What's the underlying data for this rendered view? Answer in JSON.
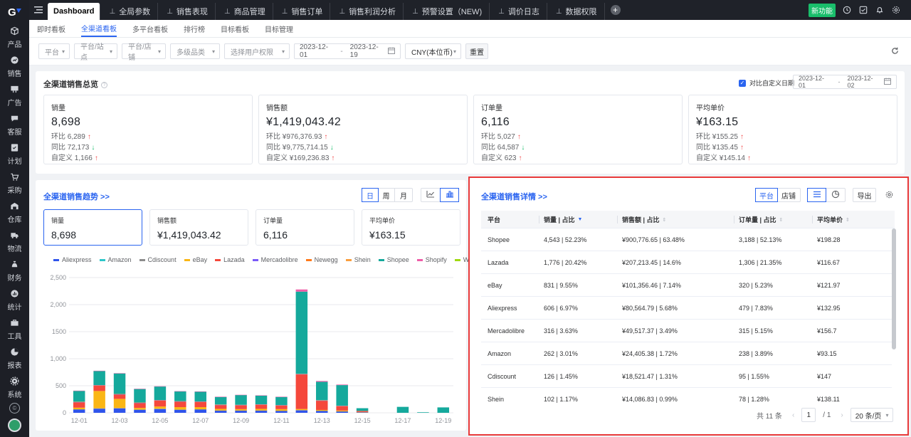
{
  "sidebar": {
    "items": [
      {
        "label": "产品",
        "icon": "box-icon"
      },
      {
        "label": "销售",
        "icon": "chart-circle-icon"
      },
      {
        "label": "广告",
        "icon": "billboard-icon"
      },
      {
        "label": "客服",
        "icon": "chat-icon"
      },
      {
        "label": "计划",
        "icon": "checklist-icon"
      },
      {
        "label": "采购",
        "icon": "cart-icon"
      },
      {
        "label": "仓库",
        "icon": "warehouse-icon"
      },
      {
        "label": "物流",
        "icon": "truck-icon"
      },
      {
        "label": "财务",
        "icon": "money-bag-icon"
      },
      {
        "label": "统计",
        "icon": "stats-icon"
      },
      {
        "label": "工具",
        "icon": "toolbox-icon"
      },
      {
        "label": "报表",
        "icon": "pie-report-icon"
      },
      {
        "label": "系统",
        "icon": "gear-icon"
      }
    ]
  },
  "topbar": {
    "tabs": [
      {
        "label": "Dashboard",
        "active": true
      },
      {
        "label": "全局参数"
      },
      {
        "label": "销售表现"
      },
      {
        "label": "商品管理"
      },
      {
        "label": "销售订单"
      },
      {
        "label": "销售利润分析"
      },
      {
        "label": "预警设置（NEW)"
      },
      {
        "label": "调价日志"
      },
      {
        "label": "数据权限"
      }
    ],
    "new_feature": "新功能"
  },
  "subnav": {
    "tabs": [
      "即时看板",
      "全渠道看板",
      "多平台看板",
      "排行榜",
      "目标看板",
      "目标管理"
    ],
    "active": 1
  },
  "filters": {
    "platform": "平台",
    "platform_site": "平台/站点",
    "platform_shop": "平台/店铺",
    "category": "多级品类",
    "user_perm": "选择用户权限",
    "date_start": "2023-12-01",
    "date_end": "2023-12-19",
    "date_sep": "-",
    "currency": "CNY(本位币)",
    "reset": "重置"
  },
  "overview": {
    "title": "全渠道销售总览",
    "compare_label": "对比自定义日期",
    "compare_checked": true,
    "compare_start": "2023-12-01",
    "compare_end": "2023-12-02",
    "compare_sep": "-",
    "cards": [
      {
        "label": "销量",
        "value": "8,698",
        "mom_label": "环比",
        "mom": "6,289",
        "mom_dir": "up",
        "yoy_label": "同比",
        "yoy": "72,173",
        "yoy_dir": "down",
        "custom_label": "自定义",
        "custom": "1,166",
        "custom_dir": "up"
      },
      {
        "label": "销售额",
        "value": "¥1,419,043.42",
        "mom_label": "环比",
        "mom": "¥976,376.93",
        "mom_dir": "up",
        "yoy_label": "同比",
        "yoy": "¥9,775,714.15",
        "yoy_dir": "down",
        "custom_label": "自定义",
        "custom": "¥169,236.83",
        "custom_dir": "up"
      },
      {
        "label": "订单量",
        "value": "6,116",
        "mom_label": "环比",
        "mom": "5,027",
        "mom_dir": "up",
        "yoy_label": "同比",
        "yoy": "64,587",
        "yoy_dir": "down",
        "custom_label": "自定义",
        "custom": "623",
        "custom_dir": "up"
      },
      {
        "label": "平均单价",
        "value": "¥163.15",
        "mom_label": "环比",
        "mom": "¥155.25",
        "mom_dir": "up",
        "yoy_label": "同比",
        "yoy": "¥135.45",
        "yoy_dir": "up",
        "custom_label": "自定义",
        "custom": "¥145.14",
        "custom_dir": "up"
      }
    ]
  },
  "trend": {
    "title": "全渠道销售趋势 >>",
    "periods": [
      "日",
      "周",
      "月"
    ],
    "active_period": 0,
    "chart_modes": [
      "line-chart-icon",
      "bar-chart-icon"
    ],
    "active_mode": 1,
    "kpis": [
      {
        "label": "销量",
        "value": "8,698"
      },
      {
        "label": "销售额",
        "value": "¥1,419,043.42"
      },
      {
        "label": "订单量",
        "value": "6,116"
      },
      {
        "label": "平均单价",
        "value": "¥163.15"
      }
    ],
    "active_kpi": 0
  },
  "chart_data": {
    "type": "bar",
    "stacked": true,
    "title": "",
    "xlabel": "",
    "ylabel": "",
    "ylim": [
      0,
      2500
    ],
    "yticks": [
      0,
      500,
      1000,
      1500,
      2000,
      2500
    ],
    "ytick_labels": [
      "0",
      "500",
      "1,000",
      "1500",
      "2,000",
      "2,500"
    ],
    "x_tick_labels": [
      "12-01",
      "12-03",
      "12-05",
      "12-07",
      "12-09",
      "12-11",
      "12-13",
      "12-15",
      "12-17",
      "12-19"
    ],
    "legend_position": "top",
    "grid": true,
    "categories": [
      "12-01",
      "12-02",
      "12-03",
      "12-04",
      "12-05",
      "12-06",
      "12-07",
      "12-08",
      "12-09",
      "12-10",
      "12-11",
      "12-12",
      "12-13",
      "12-14",
      "12-15",
      "12-16",
      "12-17",
      "12-18",
      "12-19"
    ],
    "series": [
      {
        "name": "Aliexpress",
        "color": "#2f54eb",
        "values": [
          60,
          75,
          80,
          55,
          70,
          55,
          60,
          40,
          40,
          40,
          35,
          45,
          35,
          25,
          10,
          0,
          0,
          0,
          0
        ]
      },
      {
        "name": "Amazon",
        "color": "#2ec7c9",
        "values": [
          0,
          0,
          0,
          0,
          0,
          0,
          0,
          0,
          0,
          0,
          0,
          0,
          0,
          0,
          0,
          0,
          0,
          0,
          0
        ]
      },
      {
        "name": "Cdiscount",
        "color": "#8c8c8c",
        "values": [
          5,
          8,
          8,
          5,
          6,
          5,
          5,
          3,
          3,
          3,
          3,
          5,
          3,
          2,
          0,
          0,
          0,
          0,
          0
        ]
      },
      {
        "name": "eBay",
        "color": "#fab615",
        "values": [
          30,
          320,
          170,
          30,
          40,
          45,
          40,
          30,
          25,
          30,
          30,
          20,
          15,
          15,
          5,
          0,
          0,
          0,
          0
        ]
      },
      {
        "name": "Lazada",
        "color": "#f5483b",
        "values": [
          100,
          100,
          80,
          90,
          110,
          100,
          95,
          70,
          70,
          75,
          65,
          640,
          170,
          80,
          20,
          0,
          0,
          0,
          0
        ]
      },
      {
        "name": "Mercadolibre",
        "color": "#7a5af8",
        "values": [
          5,
          5,
          5,
          5,
          5,
          5,
          5,
          5,
          5,
          5,
          5,
          5,
          5,
          5,
          0,
          0,
          0,
          0,
          0
        ]
      },
      {
        "name": "Newegg",
        "color": "#ff7a1a",
        "values": [
          0,
          0,
          0,
          0,
          0,
          0,
          0,
          0,
          0,
          0,
          0,
          0,
          0,
          0,
          0,
          0,
          0,
          0,
          0
        ]
      },
      {
        "name": "Shein",
        "color": "#fa9e3e",
        "values": [
          5,
          5,
          5,
          5,
          5,
          5,
          5,
          5,
          5,
          5,
          5,
          5,
          5,
          5,
          0,
          0,
          0,
          0,
          0
        ]
      },
      {
        "name": "Shopee",
        "color": "#15a99c",
        "values": [
          200,
          260,
          380,
          250,
          250,
          180,
          180,
          140,
          180,
          160,
          150,
          1520,
          340,
          380,
          50,
          0,
          110,
          10,
          100
        ]
      },
      {
        "name": "Shopify",
        "color": "#ef5da8",
        "values": [
          5,
          5,
          5,
          5,
          5,
          5,
          5,
          5,
          5,
          5,
          5,
          40,
          15,
          10,
          0,
          0,
          0,
          0,
          0
        ]
      },
      {
        "name": "Walmart",
        "color": "#a0d911",
        "values": [
          0,
          0,
          0,
          0,
          0,
          0,
          0,
          0,
          0,
          0,
          0,
          0,
          0,
          0,
          0,
          0,
          0,
          0,
          0
        ]
      }
    ]
  },
  "detail": {
    "title": "全渠道销售详情 >>",
    "dims": [
      "平台",
      "店铺"
    ],
    "active_dim": 0,
    "views": [
      "list-view-icon",
      "pie-view-icon"
    ],
    "active_view": 0,
    "export": "导出",
    "columns": [
      "平台",
      "销量 | 占比",
      "销售额 | 占比",
      "订单量 | 占比",
      "平均单价"
    ],
    "rows": [
      {
        "platform": "Shopee",
        "qty": "4,543  |  52.23%",
        "sales": "¥900,776.65  |  63.48%",
        "orders": "3,188  |  52.13%",
        "avg": "¥198.28"
      },
      {
        "platform": "Lazada",
        "qty": "1,776  |  20.42%",
        "sales": "¥207,213.45  |  14.6%",
        "orders": "1,306  |  21.35%",
        "avg": "¥116.67"
      },
      {
        "platform": "eBay",
        "qty": "831  |  9.55%",
        "sales": "¥101,356.46  |  7.14%",
        "orders": "320  |  5.23%",
        "avg": "¥121.97"
      },
      {
        "platform": "Aliexpress",
        "qty": "606  |  6.97%",
        "sales": "¥80,564.79  |  5.68%",
        "orders": "479  |  7.83%",
        "avg": "¥132.95"
      },
      {
        "platform": "Mercadolibre",
        "qty": "316  |  3.63%",
        "sales": "¥49,517.37  |  3.49%",
        "orders": "315  |  5.15%",
        "avg": "¥156.7"
      },
      {
        "platform": "Amazon",
        "qty": "262  |  3.01%",
        "sales": "¥24,405.38  |  1.72%",
        "orders": "238  |  3.89%",
        "avg": "¥93.15"
      },
      {
        "platform": "Cdiscount",
        "qty": "126  |  1.45%",
        "sales": "¥18,521.47  |  1.31%",
        "orders": "95  |  1.55%",
        "avg": "¥147"
      },
      {
        "platform": "Shein",
        "qty": "102  |  1.17%",
        "sales": "¥14,086.83  |  0.99%",
        "orders": "78  |  1.28%",
        "avg": "¥138.11"
      }
    ],
    "pager": {
      "total": "共 11 条",
      "page": "1",
      "of": "/ 1",
      "size": "20 条/页"
    }
  }
}
